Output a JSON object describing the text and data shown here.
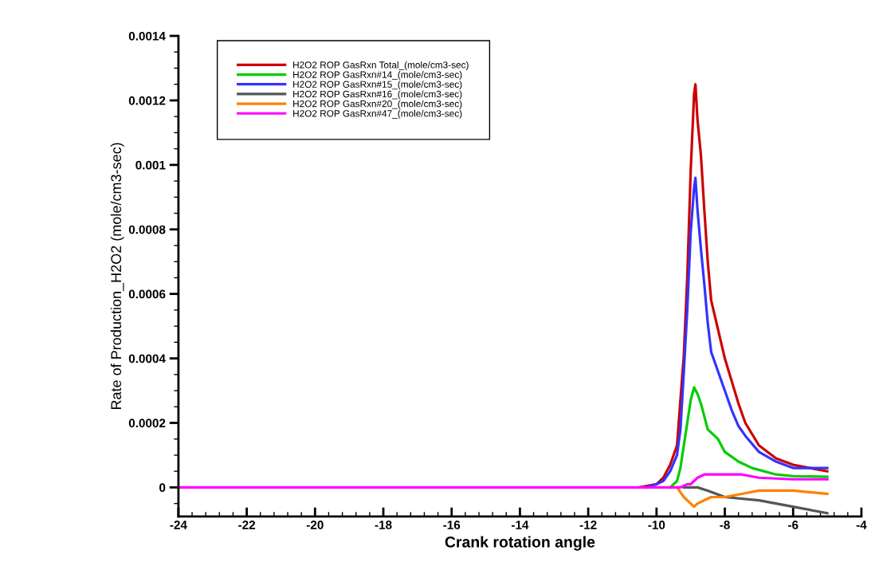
{
  "chart_data": {
    "type": "line",
    "xlabel": "Crank rotation angle",
    "ylabel": "Rate of Production_H2O2 (mole/cm3-sec)",
    "xlim": [
      -24,
      -4
    ],
    "xticks": [
      -24,
      -22,
      -20,
      -18,
      -16,
      -14,
      -12,
      -10,
      -8,
      -6,
      -4
    ],
    "ylim": [
      -9e-05,
      0.0014
    ],
    "yticks": [
      0,
      0.0002,
      0.0004,
      0.0006,
      0.0008,
      0.001,
      0.0012,
      0.0014
    ],
    "grid": false,
    "legend": "top left",
    "marker": "none",
    "line_style": "solid",
    "series": [
      {
        "name": "H2O2 ROP GasRxn Total_(mole/cm3-sec)",
        "color": "#cc0000",
        "x": [
          -10.5,
          -10,
          -9.8,
          -9.6,
          -9.4,
          -9.3,
          -9.2,
          -9.1,
          -9.0,
          -8.9,
          -8.86,
          -8.8,
          -8.7,
          -8.6,
          -8.5,
          -8.4,
          -8.2,
          -8.0,
          -7.8,
          -7.6,
          -7.4,
          -7.0,
          -6.5,
          -6.0,
          -5.5,
          -5.0
        ],
        "values": [
          0,
          1e-05,
          3e-05,
          7e-05,
          0.00013,
          0.00027,
          0.00041,
          0.00065,
          0.00098,
          0.00122,
          0.00125,
          0.00114,
          0.00103,
          0.00086,
          0.0007,
          0.00058,
          0.00049,
          0.0004,
          0.00033,
          0.00026,
          0.0002,
          0.00013,
          9e-05,
          7e-05,
          6e-05,
          5e-05
        ]
      },
      {
        "name": "H2O2 ROP GasRxn#14_(mole/cm3-sec)",
        "color": "#00cc00",
        "x": [
          -9.6,
          -9.4,
          -9.3,
          -9.2,
          -9.1,
          -9.0,
          -8.9,
          -8.8,
          -8.7,
          -8.6,
          -8.5,
          -8.2,
          -8.0,
          -7.6,
          -7.2,
          -6.5,
          -6.0,
          -5.0
        ],
        "values": [
          0,
          2e-05,
          6e-05,
          0.00013,
          0.0002,
          0.00027,
          0.00031,
          0.00029,
          0.00026,
          0.00022,
          0.00018,
          0.00015,
          0.00011,
          8e-05,
          6e-05,
          4e-05,
          3.5e-05,
          3.3e-05
        ]
      },
      {
        "name": "H2O2 ROP GasRxn#15_(mole/cm3-sec)",
        "color": "#3333ff",
        "x": [
          -10.3,
          -10,
          -9.8,
          -9.6,
          -9.4,
          -9.3,
          -9.2,
          -9.1,
          -9.0,
          -8.9,
          -8.86,
          -8.8,
          -8.7,
          -8.6,
          -8.5,
          -8.4,
          -8.2,
          -8.0,
          -7.8,
          -7.6,
          -7.4,
          -7.0,
          -6.5,
          -6.0,
          -5.0
        ],
        "values": [
          0,
          1e-05,
          2e-05,
          5e-05,
          0.0001,
          0.00018,
          0.00036,
          0.00055,
          0.00079,
          0.00093,
          0.00096,
          0.00086,
          0.00074,
          0.00063,
          0.00051,
          0.00042,
          0.00036,
          0.0003,
          0.00024,
          0.00019,
          0.00016,
          0.00011,
          8e-05,
          6e-05,
          6e-05
        ]
      },
      {
        "name": "H2O2 ROP GasRxn#16_(mole/cm3-sec)",
        "color": "#555555",
        "x": [
          -9.2,
          -8.8,
          -8.5,
          -8.0,
          -7.0,
          -6.0,
          -5.0
        ],
        "values": [
          0,
          0,
          -1e-05,
          -3e-05,
          -4e-05,
          -6e-05,
          -8e-05
        ]
      },
      {
        "name": "H2O2 ROP GasRxn#20_(mole/cm3-sec)",
        "color": "#ff8000",
        "x": [
          -9.4,
          -9.2,
          -9.0,
          -8.9,
          -8.8,
          -8.6,
          -8.4,
          -8.0,
          -7.5,
          -7.0,
          -6.0,
          -5.0
        ],
        "values": [
          0,
          -3e-05,
          -5e-05,
          -6e-05,
          -5e-05,
          -4e-05,
          -3e-05,
          -3e-05,
          -2e-05,
          -1e-05,
          -1e-05,
          -2e-05
        ]
      },
      {
        "name": "H2O2 ROP GasRxn#47_(mole/cm3-sec)",
        "color": "#ff00ff",
        "x": [
          -24,
          -9.3,
          -9.1,
          -9.0,
          -8.8,
          -8.6,
          -8.0,
          -7.5,
          -7.0,
          -6.0,
          -5.0
        ],
        "values": [
          0,
          0,
          1e-05,
          1e-05,
          3e-05,
          4e-05,
          4e-05,
          4e-05,
          3e-05,
          2.5e-05,
          2.5e-05
        ]
      }
    ]
  }
}
